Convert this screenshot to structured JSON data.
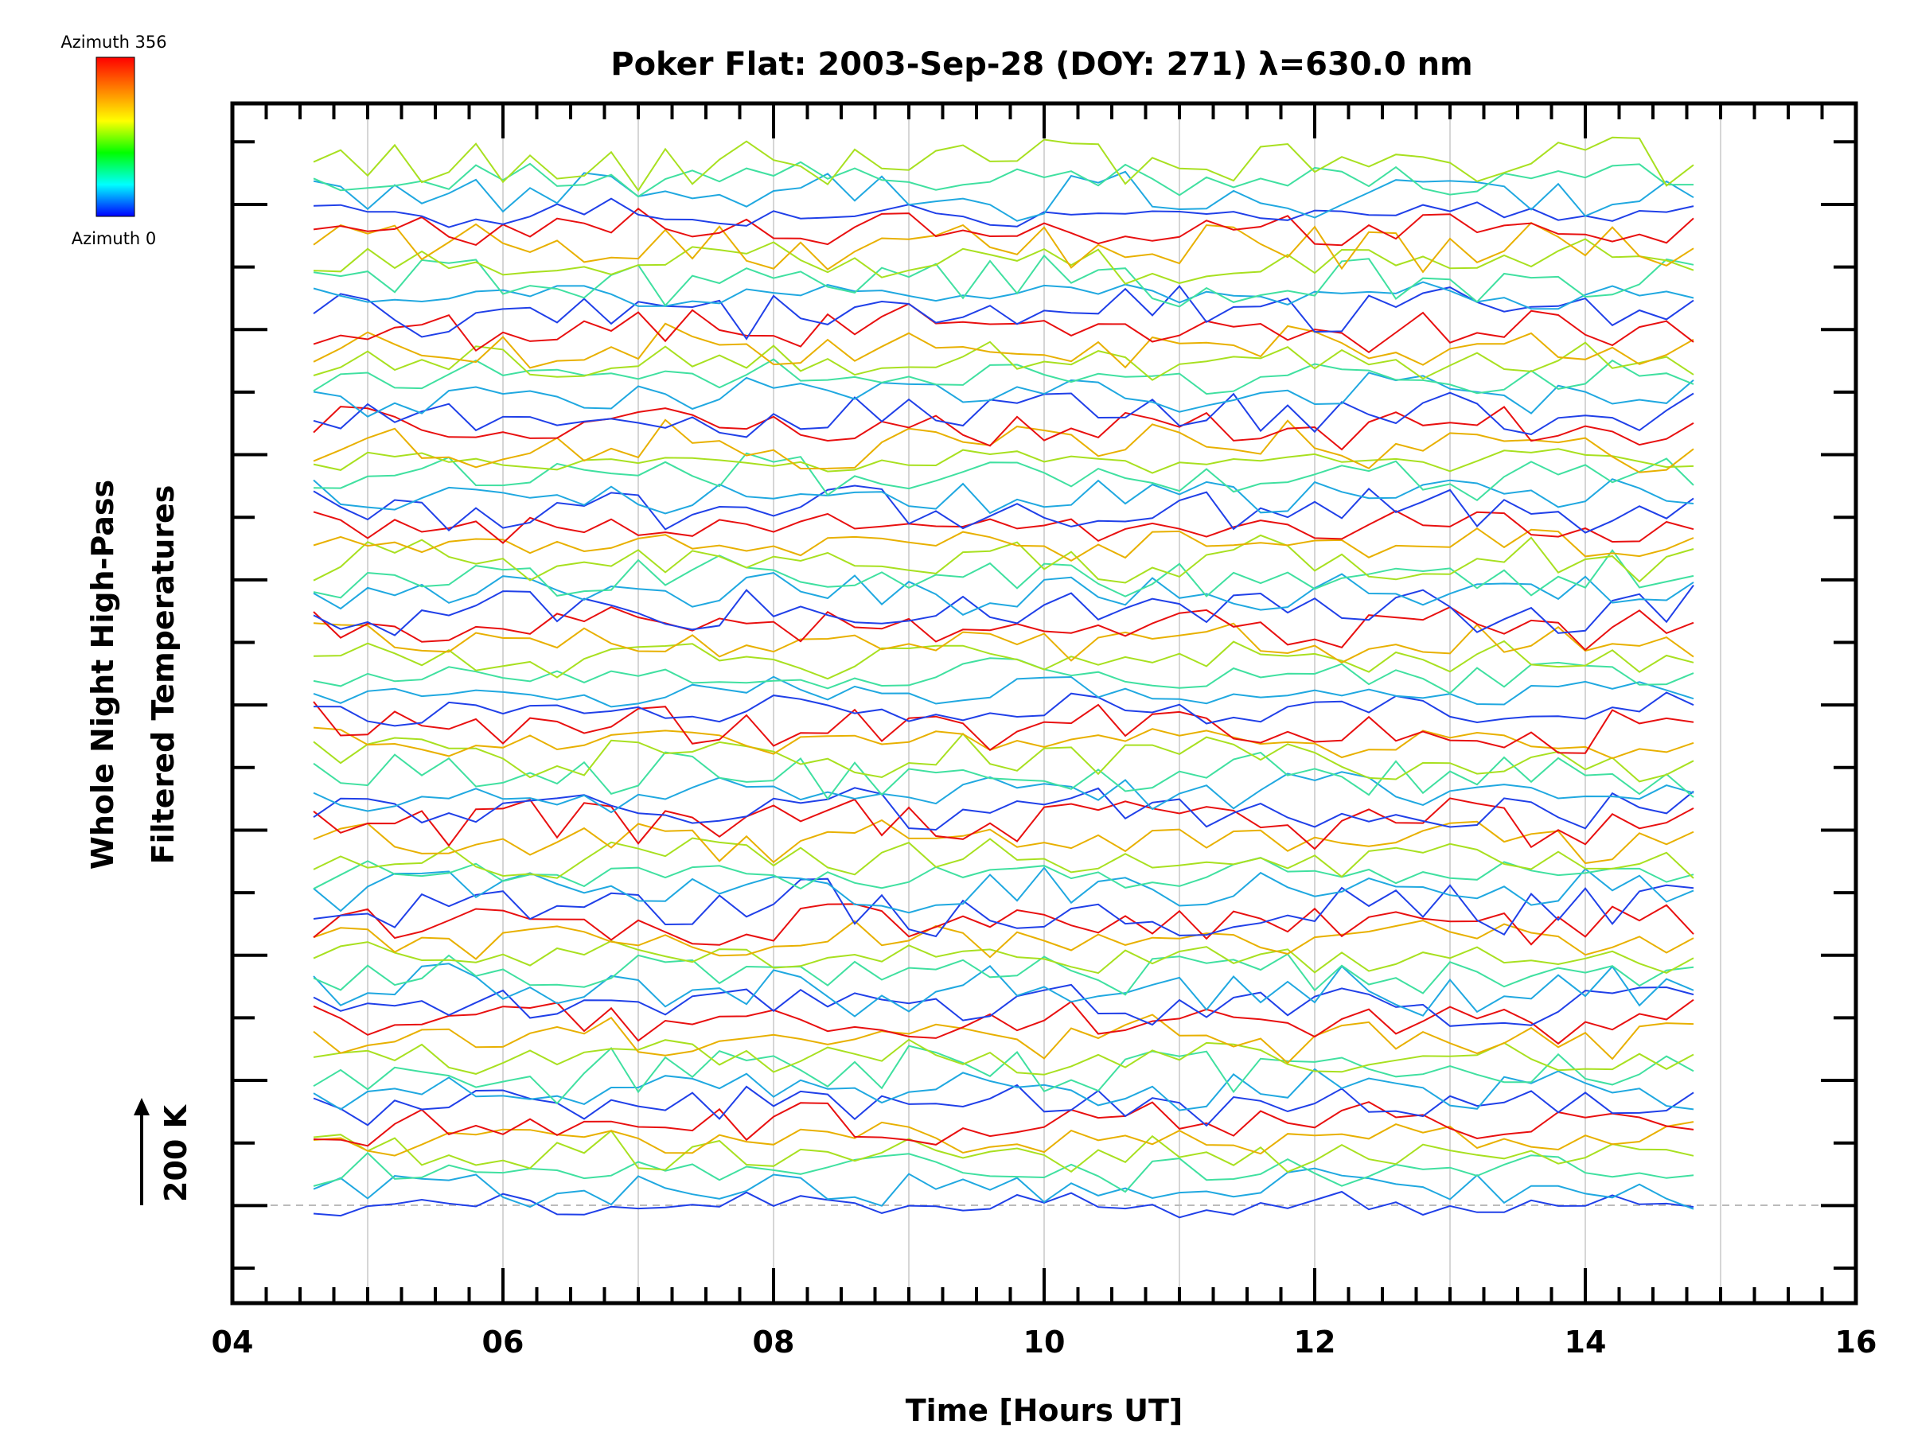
{
  "chart_data": {
    "type": "line",
    "title": "Poker Flat: 2003-Sep-28 (DOY: 271) λ=630.0 nm",
    "xlabel": "Time [Hours UT]",
    "ylabel_line1": "Whole Night High-Pass",
    "ylabel_line2": "Filtered Temperatures",
    "scale_bar_label": "200 K",
    "xlim": [
      4,
      16
    ],
    "x_ticks": [
      "04",
      "06",
      "08",
      "10",
      "12",
      "14",
      "16"
    ],
    "grid": "vertical gridlines every 1 hour",
    "time_range": [
      4.6,
      14.85
    ],
    "sample_interval_hours": 0.2,
    "series_count": 64,
    "colorbar": {
      "top_label": "Azimuth 356",
      "bottom_label": "Azimuth 0",
      "colors": [
        "#ff0000",
        "#ff8000",
        "#ffff00",
        "#00ff00",
        "#00ffff",
        "#0000ff"
      ]
    },
    "series_colors": [
      "#2040e8",
      "#20a8e0",
      "#40e0a0",
      "#a8e020",
      "#e8b000",
      "#e81010"
    ],
    "scale_bar_K": 200
  }
}
